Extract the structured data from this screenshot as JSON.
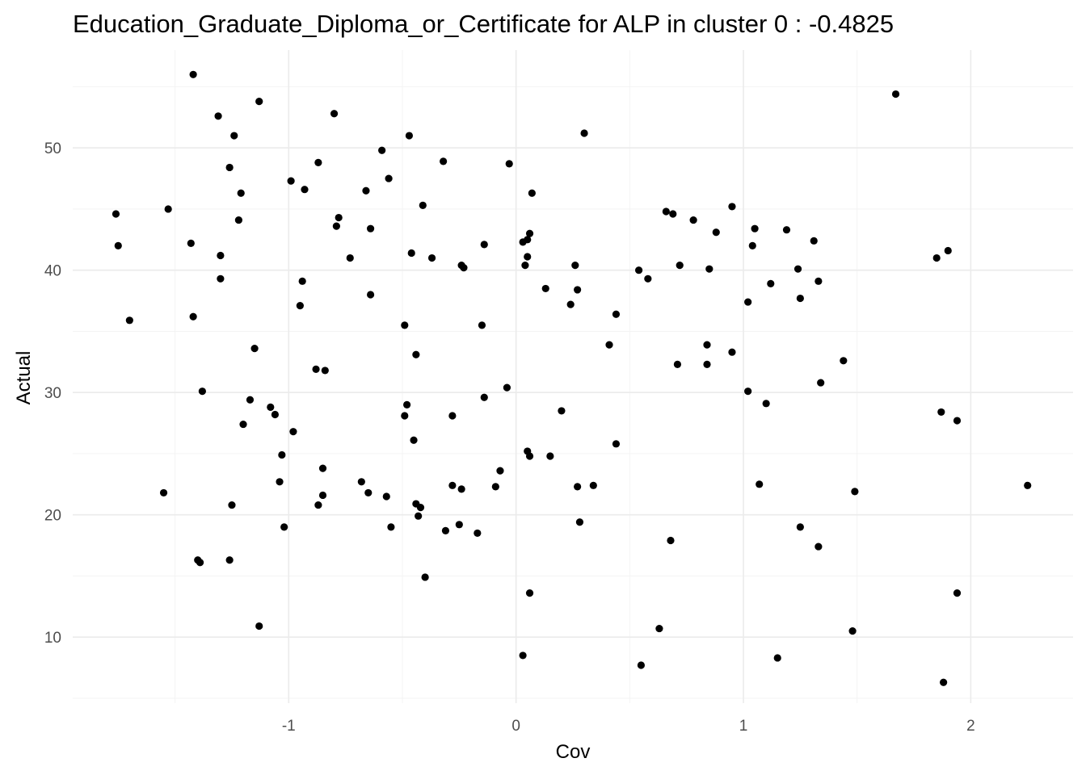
{
  "chart_data": {
    "type": "scatter",
    "title": "Education_Graduate_Diploma_or_Certificate for ALP in cluster 0 : -0.4825",
    "xlabel": "Cov",
    "ylabel": "Actual",
    "xlim": [
      -1.95,
      2.45
    ],
    "ylim": [
      4.6,
      58.0
    ],
    "x_ticks": [
      -1,
      0,
      1,
      2
    ],
    "x_tick_labels": [
      "-1",
      "0",
      "1",
      "2"
    ],
    "y_ticks": [
      10,
      20,
      30,
      40,
      50
    ],
    "y_tick_labels": [
      "10",
      "20",
      "30",
      "40",
      "50"
    ],
    "grid": true,
    "point_color": "#000000",
    "points": [
      [
        -1.76,
        44.6
      ],
      [
        -1.75,
        42.0
      ],
      [
        -1.7,
        35.9
      ],
      [
        -1.55,
        21.8
      ],
      [
        -1.53,
        45.0
      ],
      [
        -1.43,
        42.2
      ],
      [
        -1.42,
        56.0
      ],
      [
        -1.42,
        36.2
      ],
      [
        -1.4,
        16.3
      ],
      [
        -1.39,
        16.1
      ],
      [
        -1.38,
        30.1
      ],
      [
        -1.31,
        52.6
      ],
      [
        -1.3,
        41.2
      ],
      [
        -1.3,
        39.3
      ],
      [
        -1.26,
        16.3
      ],
      [
        -1.26,
        48.4
      ],
      [
        -1.25,
        20.8
      ],
      [
        -1.24,
        51.0
      ],
      [
        -1.22,
        44.1
      ],
      [
        -1.21,
        46.3
      ],
      [
        -1.2,
        27.4
      ],
      [
        -1.17,
        29.4
      ],
      [
        -1.15,
        33.6
      ],
      [
        -1.13,
        53.8
      ],
      [
        -1.13,
        10.9
      ],
      [
        -1.08,
        28.8
      ],
      [
        -1.06,
        28.2
      ],
      [
        -1.04,
        22.7
      ],
      [
        -1.03,
        24.9
      ],
      [
        -1.02,
        19.0
      ],
      [
        -0.99,
        47.3
      ],
      [
        -0.98,
        26.8
      ],
      [
        -0.95,
        37.1
      ],
      [
        -0.94,
        39.1
      ],
      [
        -0.93,
        46.6
      ],
      [
        -0.88,
        31.9
      ],
      [
        -0.87,
        48.8
      ],
      [
        -0.87,
        20.8
      ],
      [
        -0.85,
        21.6
      ],
      [
        -0.85,
        23.8
      ],
      [
        -0.84,
        31.8
      ],
      [
        -0.8,
        52.8
      ],
      [
        -0.79,
        43.6
      ],
      [
        -0.78,
        44.3
      ],
      [
        -0.73,
        41.0
      ],
      [
        -0.68,
        22.7
      ],
      [
        -0.66,
        46.5
      ],
      [
        -0.65,
        21.8
      ],
      [
        -0.64,
        38.0
      ],
      [
        -0.64,
        43.4
      ],
      [
        -0.59,
        49.8
      ],
      [
        -0.57,
        21.5
      ],
      [
        -0.56,
        47.5
      ],
      [
        -0.55,
        19.0
      ],
      [
        -0.49,
        35.5
      ],
      [
        -0.49,
        28.1
      ],
      [
        -0.48,
        29.0
      ],
      [
        -0.47,
        51.0
      ],
      [
        -0.46,
        41.4
      ],
      [
        -0.45,
        26.1
      ],
      [
        -0.44,
        33.1
      ],
      [
        -0.44,
        20.9
      ],
      [
        -0.43,
        19.9
      ],
      [
        -0.42,
        20.6
      ],
      [
        -0.41,
        45.3
      ],
      [
        -0.4,
        14.9
      ],
      [
        -0.37,
        41.0
      ],
      [
        -0.32,
        48.9
      ],
      [
        -0.31,
        18.7
      ],
      [
        -0.28,
        28.1
      ],
      [
        -0.28,
        22.4
      ],
      [
        -0.25,
        19.2
      ],
      [
        -0.24,
        22.1
      ],
      [
        -0.24,
        40.4
      ],
      [
        -0.23,
        40.2
      ],
      [
        -0.17,
        18.5
      ],
      [
        -0.15,
        35.5
      ],
      [
        -0.14,
        29.6
      ],
      [
        -0.14,
        42.1
      ],
      [
        -0.09,
        22.3
      ],
      [
        -0.07,
        23.6
      ],
      [
        -0.04,
        30.4
      ],
      [
        -0.03,
        48.7
      ],
      [
        0.03,
        8.5
      ],
      [
        0.03,
        42.3
      ],
      [
        0.04,
        40.4
      ],
      [
        0.05,
        42.5
      ],
      [
        0.05,
        25.2
      ],
      [
        0.05,
        41.1
      ],
      [
        0.06,
        13.6
      ],
      [
        0.06,
        24.8
      ],
      [
        0.06,
        43.0
      ],
      [
        0.07,
        46.3
      ],
      [
        0.13,
        38.5
      ],
      [
        0.15,
        24.8
      ],
      [
        0.2,
        28.5
      ],
      [
        0.24,
        37.2
      ],
      [
        0.26,
        40.4
      ],
      [
        0.27,
        22.3
      ],
      [
        0.27,
        38.4
      ],
      [
        0.28,
        19.4
      ],
      [
        0.3,
        51.2
      ],
      [
        0.34,
        22.4
      ],
      [
        0.41,
        33.9
      ],
      [
        0.44,
        36.4
      ],
      [
        0.44,
        25.8
      ],
      [
        0.54,
        40.0
      ],
      [
        0.55,
        7.7
      ],
      [
        0.58,
        39.3
      ],
      [
        0.63,
        10.7
      ],
      [
        0.66,
        44.8
      ],
      [
        0.68,
        17.9
      ],
      [
        0.69,
        44.6
      ],
      [
        0.71,
        32.3
      ],
      [
        0.72,
        40.4
      ],
      [
        0.78,
        44.1
      ],
      [
        0.84,
        33.9
      ],
      [
        0.84,
        32.3
      ],
      [
        0.85,
        40.1
      ],
      [
        0.88,
        43.1
      ],
      [
        0.95,
        45.2
      ],
      [
        0.95,
        33.3
      ],
      [
        1.02,
        30.1
      ],
      [
        1.02,
        37.4
      ],
      [
        1.04,
        42.0
      ],
      [
        1.05,
        43.4
      ],
      [
        1.07,
        22.5
      ],
      [
        1.1,
        29.1
      ],
      [
        1.12,
        38.9
      ],
      [
        1.15,
        8.3
      ],
      [
        1.19,
        43.3
      ],
      [
        1.24,
        40.1
      ],
      [
        1.25,
        37.7
      ],
      [
        1.25,
        19.0
      ],
      [
        1.31,
        42.4
      ],
      [
        1.33,
        17.4
      ],
      [
        1.33,
        39.1
      ],
      [
        1.34,
        30.8
      ],
      [
        1.44,
        32.6
      ],
      [
        1.48,
        10.5
      ],
      [
        1.49,
        21.9
      ],
      [
        1.67,
        54.4
      ],
      [
        1.85,
        41.0
      ],
      [
        1.87,
        28.4
      ],
      [
        1.88,
        6.3
      ],
      [
        1.9,
        41.6
      ],
      [
        1.94,
        27.7
      ],
      [
        1.94,
        13.6
      ],
      [
        2.25,
        22.4
      ]
    ]
  }
}
